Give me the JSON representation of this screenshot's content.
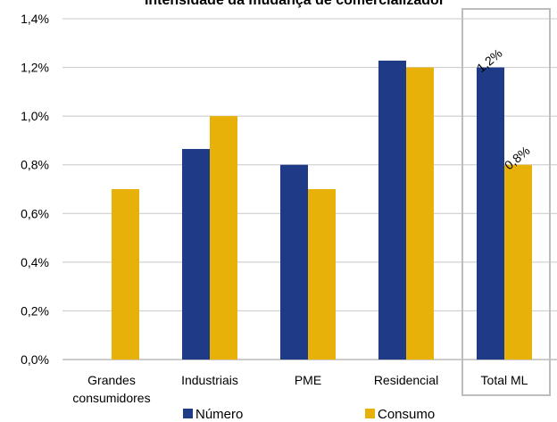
{
  "chart_data": {
    "type": "bar",
    "title": "Intensidade da mudança de comercializador",
    "categories": [
      [
        "Grandes",
        "consumidores"
      ],
      [
        "Industriais"
      ],
      [
        "PME"
      ],
      [
        "Residencial"
      ],
      [
        "Total ML"
      ]
    ],
    "series": [
      {
        "name": "Número",
        "color": "#1f3a87",
        "values": [
          0,
          0.865,
          0.8,
          1.228,
          1.2
        ]
      },
      {
        "name": "Consumo",
        "color": "#e8b10a",
        "values": [
          0.7,
          1.0,
          0.7,
          1.2,
          0.8
        ]
      }
    ],
    "yticks": [
      "0,0%",
      "0,2%",
      "0,4%",
      "0,6%",
      "0,8%",
      "1,0%",
      "1,2%",
      "1,4%"
    ],
    "ylim": [
      0,
      1.4
    ],
    "grid": true,
    "legend_position": "bottom",
    "highlight_category": "Total ML",
    "data_labels": [
      {
        "category": 4,
        "series": 0,
        "text": "1,2%"
      },
      {
        "category": 4,
        "series": 1,
        "text": "0,8%"
      }
    ]
  }
}
